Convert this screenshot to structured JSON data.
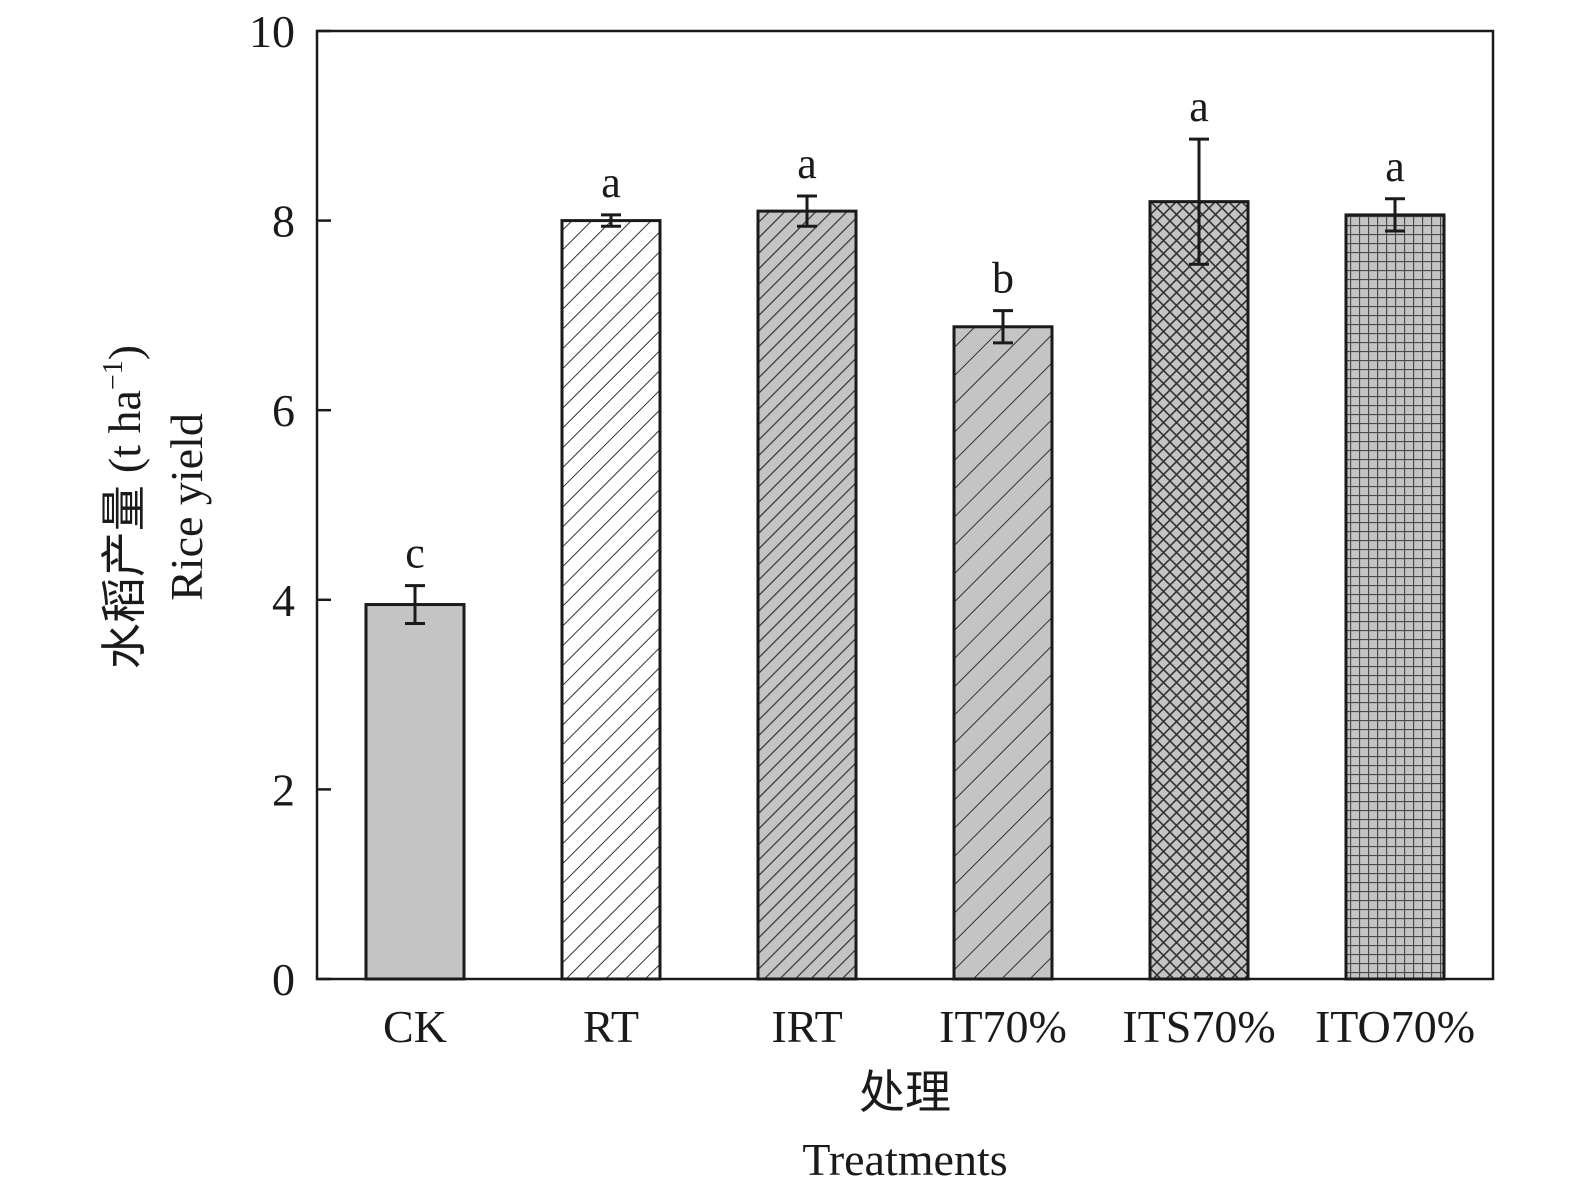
{
  "chart_data": {
    "type": "bar",
    "xlabel_cn": "处理",
    "xlabel_en": "Treatments",
    "ylabel_cn": "水稻产量",
    "ylabel_unit_pre": "(t ha",
    "ylabel_unit_sup": "−1",
    "ylabel_unit_post": ")",
    "ylabel_en": "Rice yield",
    "ylim": [
      0,
      10
    ],
    "yticks": [
      "0",
      "2",
      "4",
      "6",
      "8",
      "10"
    ],
    "categories": [
      "CK",
      "RT",
      "IRT",
      "IT70%",
      "ITS70%",
      "ITO70%"
    ],
    "values": [
      3.95,
      8.0,
      8.1,
      6.88,
      8.2,
      8.06
    ],
    "errors": [
      0.2,
      0.06,
      0.16,
      0.17,
      0.66,
      0.17
    ],
    "letters": [
      "c",
      "a",
      "a",
      "b",
      "a",
      "a"
    ],
    "patterns": [
      "solid-gray",
      "light-diagonal",
      "dense-diagonal",
      "wide-diagonal",
      "crosshatch",
      "grid"
    ],
    "colors": {
      "bar_fill": "#c4c4c4",
      "stroke": "#1a1a1a",
      "light_bar_fill": "#ffffff"
    },
    "grid": false,
    "legend": "none"
  }
}
